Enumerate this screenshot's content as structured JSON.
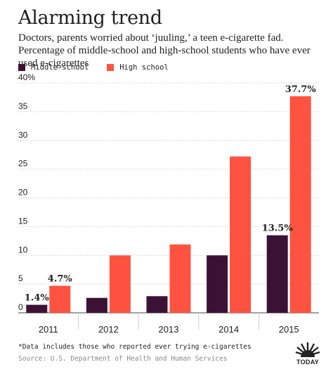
{
  "title": "Alarming trend",
  "subtitle": "Doctors, parents worried about ‘juuling,’ a teen e-cigarette fad. Percentage of middle-school and high-school students who have ever used e-cigarettes",
  "colors": {
    "middle_school": "#3b1235",
    "high_school": "#ff5240",
    "grid": "#cfcfcf",
    "text": "#222222"
  },
  "chart_data": {
    "type": "bar",
    "categories": [
      "2011",
      "2012",
      "2013",
      "2014",
      "2015"
    ],
    "series": [
      {
        "name": "Middle school",
        "values": [
          1.4,
          2.6,
          2.9,
          10.0,
          13.5
        ]
      },
      {
        "name": "High school",
        "values": [
          4.7,
          10.0,
          11.9,
          27.2,
          37.7
        ]
      }
    ],
    "y_ticks": [
      "40%",
      "35",
      "30",
      "25",
      "20",
      "15",
      "10",
      "5",
      "0"
    ],
    "ylim": [
      0,
      40
    ],
    "grid": true,
    "legend_position": "top-left",
    "data_labels": [
      {
        "series": 0,
        "index": 0,
        "text": "1.4%"
      },
      {
        "series": 1,
        "index": 0,
        "text": "4.7%"
      },
      {
        "series": 0,
        "index": 4,
        "text": "13.5%"
      },
      {
        "series": 1,
        "index": 4,
        "text": "37.7%"
      }
    ]
  },
  "footnote": "*Data includes those who reported ever trying e-cigarettes",
  "source": "Source: U.S. Department of Health and Human Services",
  "logo": {
    "text": "TODAY",
    "icon": "today-sunrise-logo"
  }
}
